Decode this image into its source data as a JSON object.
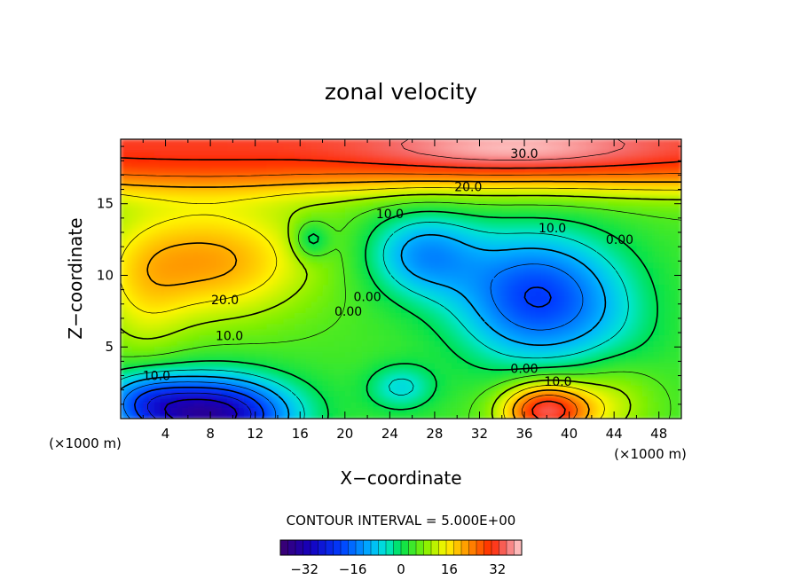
{
  "chart_data": {
    "type": "heatmap",
    "title": "zonal velocity",
    "xlabel": "X−coordinate",
    "ylabel": "Z−coordinate",
    "x_unit_label": "(×1000 m)",
    "xlim": [
      0,
      50
    ],
    "ylim": [
      0,
      19.5
    ],
    "x_ticks": [
      4,
      8,
      12,
      16,
      20,
      24,
      28,
      32,
      36,
      40,
      44,
      48
    ],
    "y_ticks": [
      5,
      10,
      15
    ],
    "contour_interval_label": "CONTOUR INTERVAL = 5.000E+00",
    "contour_interval": 5.0,
    "colorbar": {
      "range": [
        -40,
        40
      ],
      "ticks": [
        -32,
        -16,
        0,
        16,
        32
      ],
      "tick_labels": [
        "−32",
        "−16",
        "0",
        "16",
        "32"
      ]
    },
    "contour_labels": [
      {
        "x": 36.0,
        "z": 18.5,
        "text": "30.0"
      },
      {
        "x": 31.0,
        "z": 16.2,
        "text": "20.0"
      },
      {
        "x": 24.0,
        "z": 14.3,
        "text": "10.0"
      },
      {
        "x": 38.5,
        "z": 13.3,
        "text": "10.0"
      },
      {
        "x": 44.5,
        "z": 12.5,
        "text": "0.00"
      },
      {
        "x": 9.3,
        "z": 8.3,
        "text": "20.0"
      },
      {
        "x": 9.7,
        "z": 5.8,
        "text": "10.0"
      },
      {
        "x": 20.3,
        "z": 7.5,
        "text": "0.00"
      },
      {
        "x": 22.0,
        "z": 8.5,
        "text": "0.00"
      },
      {
        "x": 3.2,
        "z": 3.0,
        "text": "10.0"
      },
      {
        "x": 36.0,
        "z": 3.5,
        "text": "0.00"
      },
      {
        "x": 39.0,
        "z": 2.6,
        "text": "10.0"
      }
    ],
    "grid": false,
    "legend": "none"
  },
  "colors": {
    "background": "#ffffff",
    "axes": "#000000",
    "contour_line": "#000000"
  }
}
